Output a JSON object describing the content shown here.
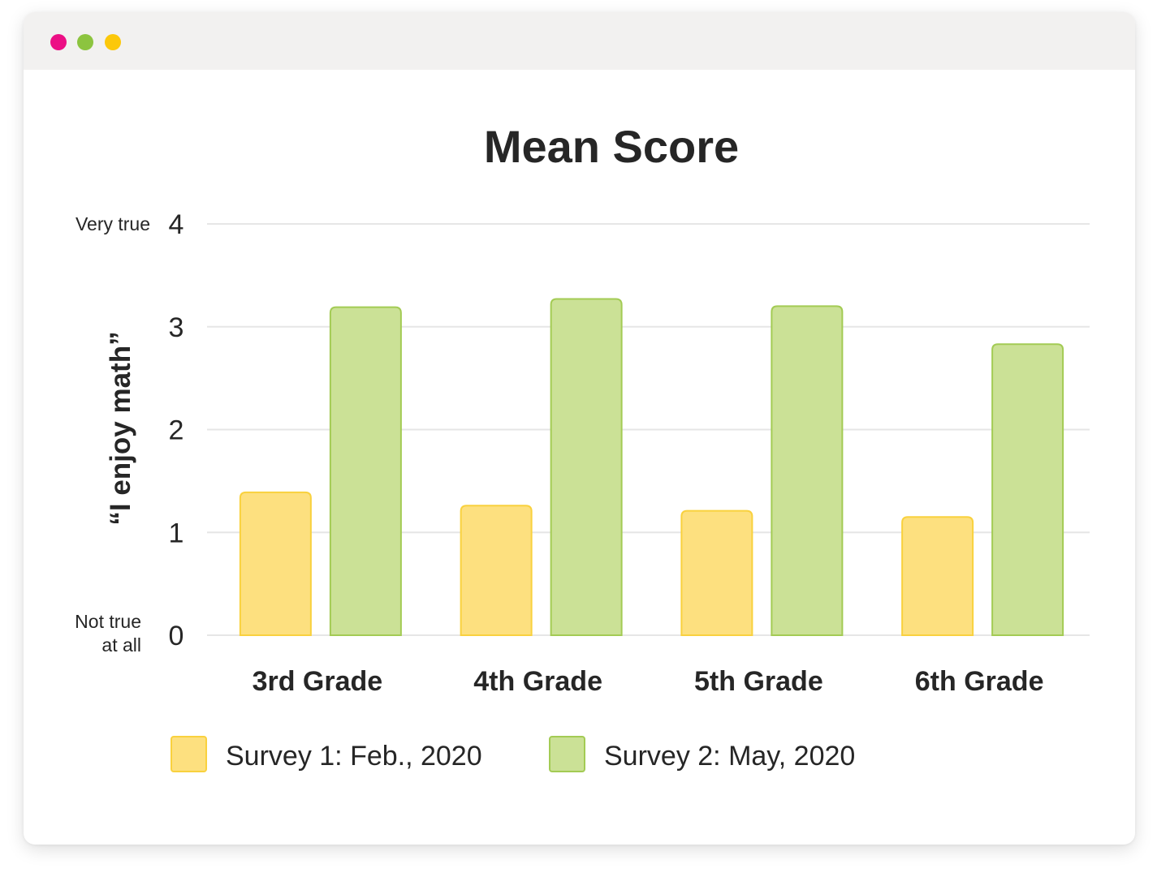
{
  "window": {
    "controls": [
      {
        "name": "close",
        "color": "#ec0f85"
      },
      {
        "name": "minimize",
        "color": "#8cc43f"
      },
      {
        "name": "zoom",
        "color": "#fcc80a"
      }
    ]
  },
  "colors": {
    "survey1_fill": "#fde07f",
    "survey1_stroke": "#f9d13e",
    "survey2_fill": "#cbe196",
    "survey2_stroke": "#a3cb54",
    "grid": "#e6e6e6",
    "text": "#262626"
  },
  "chart_data": {
    "type": "bar",
    "title": "Mean Score",
    "ylabel": "“I enjoy math”",
    "ylim": [
      0,
      4
    ],
    "yticks": [
      0,
      1,
      2,
      3,
      4
    ],
    "ytick_annotations": {
      "top": "Very true",
      "bottom_line1": "Not true",
      "bottom_line2": "at all"
    },
    "grid": true,
    "legend_position": "bottom",
    "categories": [
      "3rd Grade",
      "4th Grade",
      "5th Grade",
      "6th Grade"
    ],
    "series": [
      {
        "name": "Survey 1: Feb., 2020",
        "values": [
          1.39,
          1.26,
          1.21,
          1.15
        ]
      },
      {
        "name": "Survey 2: May, 2020",
        "values": [
          3.19,
          3.27,
          3.2,
          2.83
        ]
      }
    ]
  }
}
